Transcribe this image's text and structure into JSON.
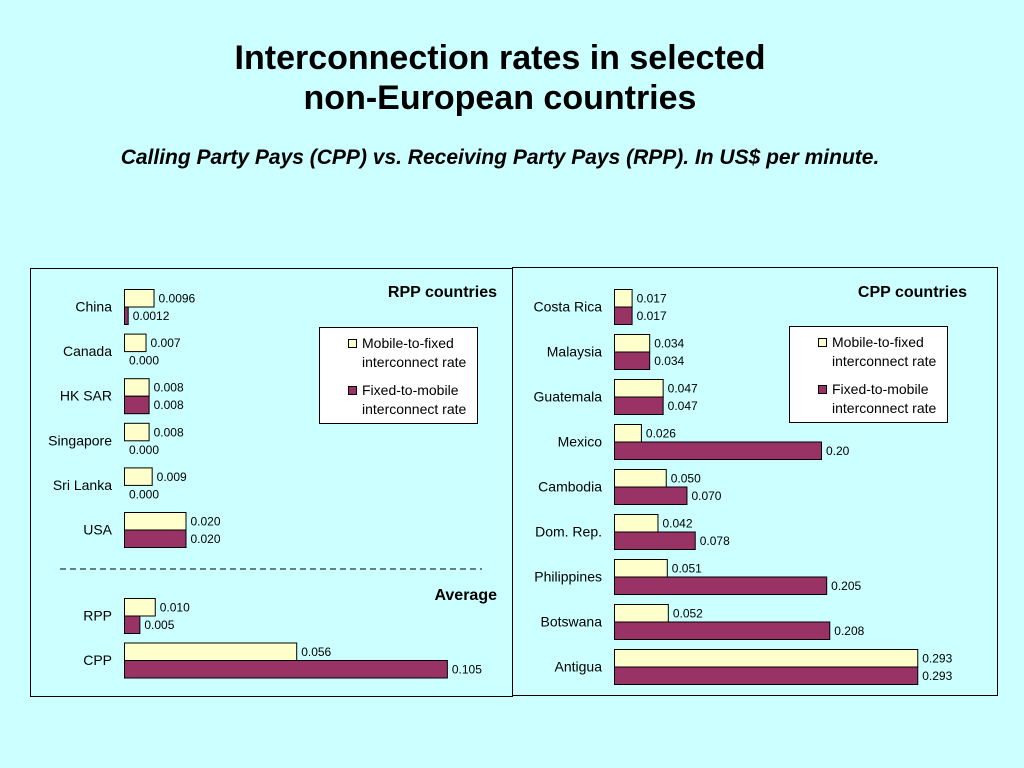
{
  "title_lines": [
    "Interconnection rates in selected",
    "non-European countries"
  ],
  "subtitle": "Calling Party Pays (CPP) vs. Receiving Party Pays (RPP). In US$ per minute.",
  "colors": {
    "mobile_to_fixed": "#ffffcc",
    "fixed_to_mobile": "#993366",
    "background": "#ccffff"
  },
  "chart_data": [
    {
      "type": "bar",
      "orientation": "horizontal",
      "title": "RPP countries",
      "categories": [
        "China",
        "Canada",
        "HK SAR",
        "Singapore",
        "Sri Lanka",
        "USA"
      ],
      "series": [
        {
          "name": "Mobile-to-fixed interconnect rate",
          "values": [
            0.0096,
            0.007,
            0.008,
            0.008,
            0.009,
            0.02
          ],
          "labels": [
            "0.0096",
            "0.007",
            "0.008",
            "0.008",
            "0.009",
            "0.020"
          ]
        },
        {
          "name": "Fixed-to-mobile interconnect rate",
          "values": [
            0.0012,
            0.0,
            0.008,
            0.0,
            0.0,
            0.02
          ],
          "labels": [
            "0.0012",
            "0.000",
            "0.008",
            "0.000",
            "0.000",
            "0.020"
          ]
        }
      ],
      "legend": [
        "Mobile-to-fixed interconnect rate",
        "Fixed-to-mobile interconnect rate"
      ],
      "legend_placement": "top-right"
    },
    {
      "type": "bar",
      "orientation": "horizontal",
      "title": "Average",
      "categories": [
        "RPP",
        "CPP"
      ],
      "series": [
        {
          "name": "Mobile-to-fixed interconnect rate",
          "values": [
            0.01,
            0.056
          ],
          "labels": [
            "0.010",
            "0.056"
          ]
        },
        {
          "name": "Fixed-to-mobile interconnect rate",
          "values": [
            0.005,
            0.105
          ],
          "labels": [
            "0.005",
            "0.105"
          ]
        }
      ]
    },
    {
      "type": "bar",
      "orientation": "horizontal",
      "title": "CPP countries",
      "categories": [
        "Costa Rica",
        "Malaysia",
        "Guatemala",
        "Mexico",
        "Cambodia",
        "Dom. Rep.",
        "Philippines",
        "Botswana",
        "Antigua"
      ],
      "series": [
        {
          "name": "Mobile-to-fixed interconnect rate",
          "values": [
            0.017,
            0.034,
            0.047,
            0.026,
            0.05,
            0.042,
            0.051,
            0.052,
            0.293
          ],
          "labels": [
            "0.017",
            "0.034",
            "0.047",
            "0.026",
            "0.050",
            "0.042",
            "0.051",
            "0.052",
            "0.293"
          ]
        },
        {
          "name": "Fixed-to-mobile interconnect rate",
          "values": [
            0.017,
            0.034,
            0.047,
            0.2,
            0.07,
            0.078,
            0.205,
            0.208,
            0.293
          ],
          "labels": [
            "0.017",
            "0.034",
            "0.047",
            "0.20",
            "0.070",
            "0.078",
            "0.205",
            "0.208",
            "0.293"
          ]
        }
      ],
      "legend": [
        "Mobile-to-fixed interconnect rate",
        "Fixed-to-mobile interconnect rate"
      ],
      "legend_placement": "top-right"
    }
  ]
}
